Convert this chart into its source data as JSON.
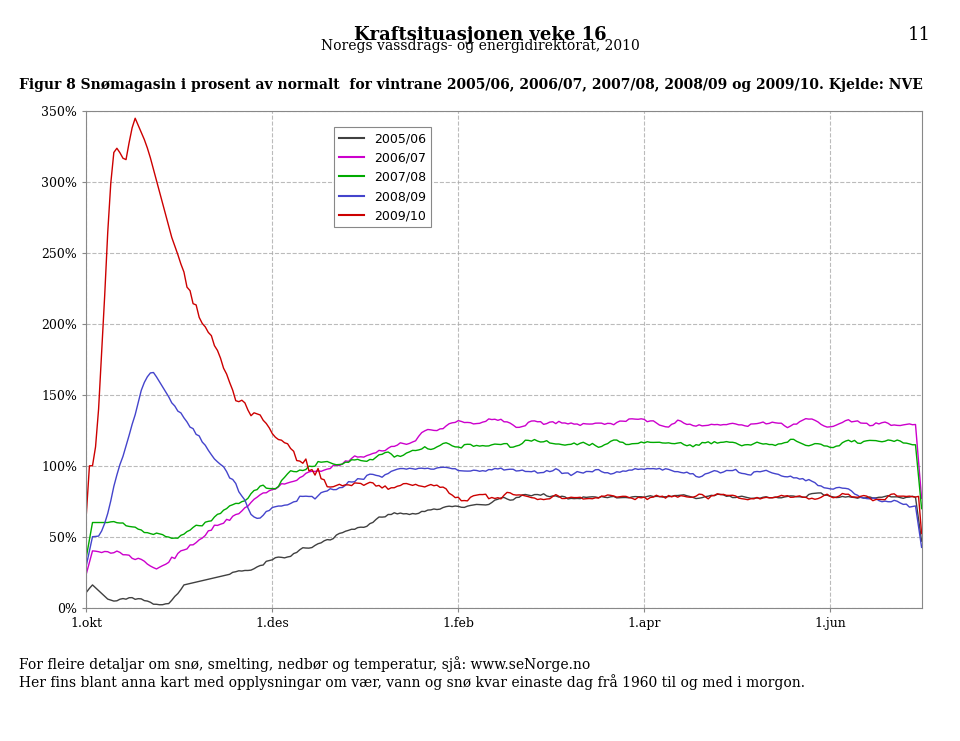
{
  "title": "Kraftsituasjonen veke 16",
  "subtitle": "Noregs vassdrags- og energidirektorat, 2010",
  "page_number": "11",
  "figure_caption": "Figur 8 Snømagasin i prosent av normalt  for vintrane 2005/06, 2006/07, 2007/08, 2008/09 og 2009/10. Kjelde: NVE",
  "footer_line1": "For fleire detaljar om snø, smelting, nedbør og temperatur, sjå: www.seNorge.no",
  "footer_line2": "Her fins blant anna kart med opplysningar om vær, vann og snø kvar einaste dag frå 1960 til og med i morgon.",
  "xtick_labels": [
    "1.okt",
    "1.des",
    "1.feb",
    "1.apr",
    "1.jun"
  ],
  "ytick_labels": [
    "0%",
    "50%",
    "100%",
    "150%",
    "200%",
    "250%",
    "300%",
    "350%"
  ],
  "ylim": [
    0,
    350
  ],
  "legend_labels": [
    "2005/06",
    "2006/07",
    "2007/08",
    "2008/09",
    "2009/10"
  ],
  "line_colors": [
    "#404040",
    "#cc00cc",
    "#00aa00",
    "#4444cc",
    "#cc0000"
  ],
  "background_color": "#ffffff",
  "plot_bg_color": "#ffffff",
  "grid_color": "#aaaaaa",
  "grid_style": "--"
}
